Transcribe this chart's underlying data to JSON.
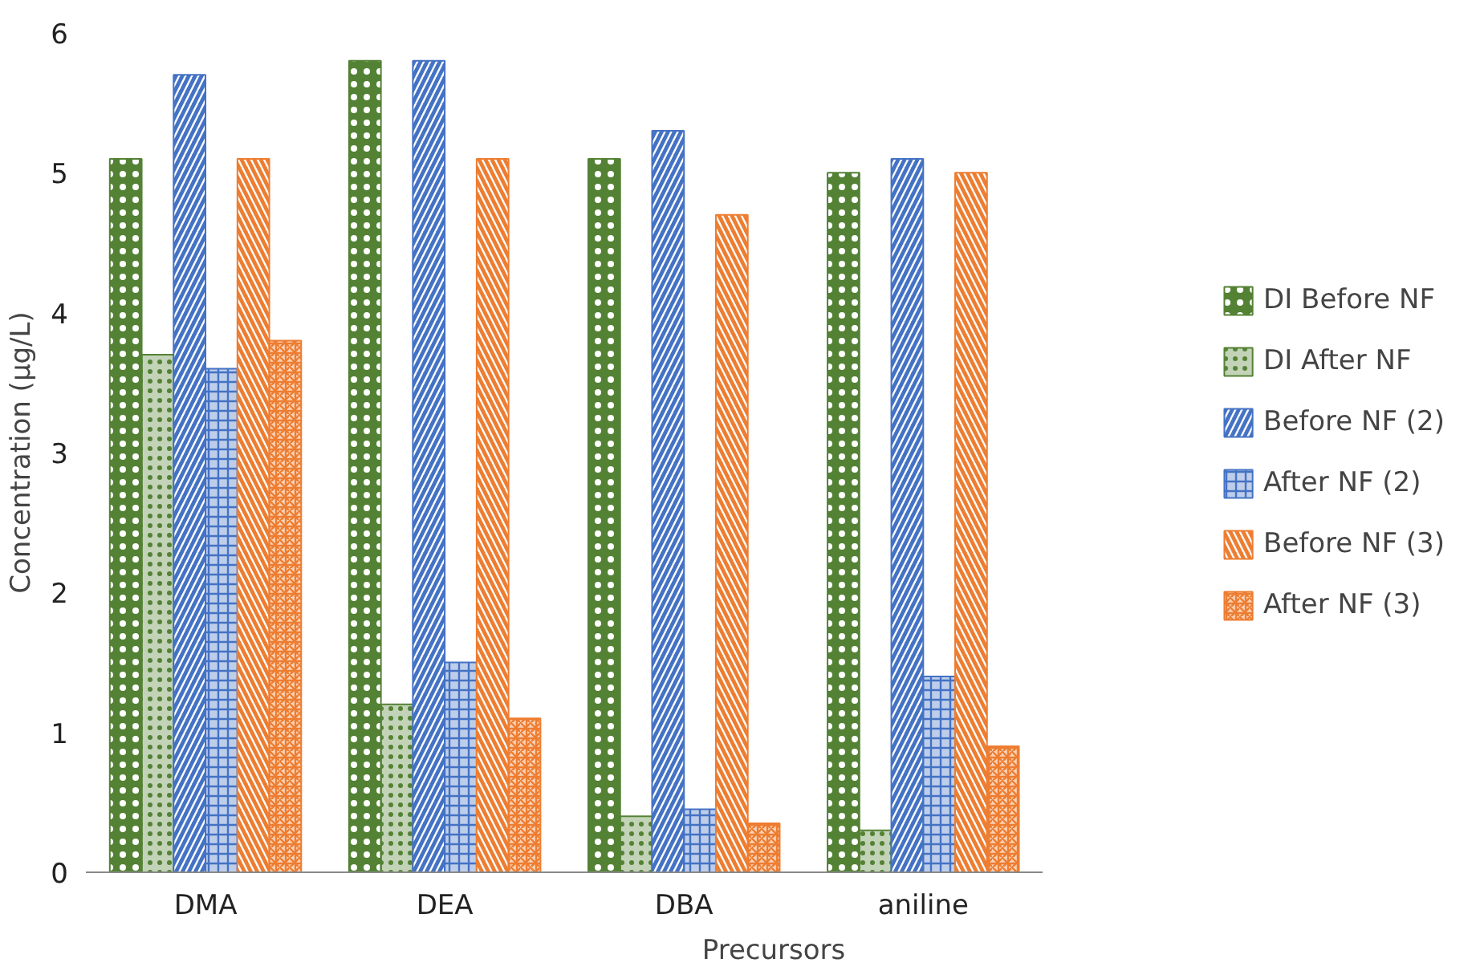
{
  "chart_data": {
    "type": "bar",
    "xlabel": "Precursors",
    "ylabel": "Concentration (µg/L)",
    "categories": [
      "DMA",
      "DEA",
      "DBA",
      "aniline"
    ],
    "series": [
      {
        "name": "DI Before NF",
        "color": "#548235",
        "values": [
          5.1,
          5.8,
          5.1,
          5.0
        ]
      },
      {
        "name": "DI After NF",
        "color": "#548235",
        "values": [
          3.7,
          1.2,
          0.4,
          0.3
        ]
      },
      {
        "name": "Before NF (2)",
        "color": "#4472c4",
        "values": [
          5.7,
          5.8,
          5.3,
          5.1
        ]
      },
      {
        "name": "After NF (2)",
        "color": "#4472c4",
        "values": [
          3.6,
          1.5,
          0.45,
          1.4
        ]
      },
      {
        "name": "Before NF (3)",
        "color": "#ed7d31",
        "values": [
          5.1,
          5.1,
          4.7,
          5.0
        ]
      },
      {
        "name": "After NF (3)",
        "color": "#ed7d31",
        "values": [
          3.8,
          1.1,
          0.35,
          0.9
        ]
      }
    ],
    "ylim": [
      0,
      6
    ],
    "yticks": [
      0,
      1,
      2,
      3,
      4,
      5,
      6
    ],
    "grid": false,
    "legend": "right"
  }
}
